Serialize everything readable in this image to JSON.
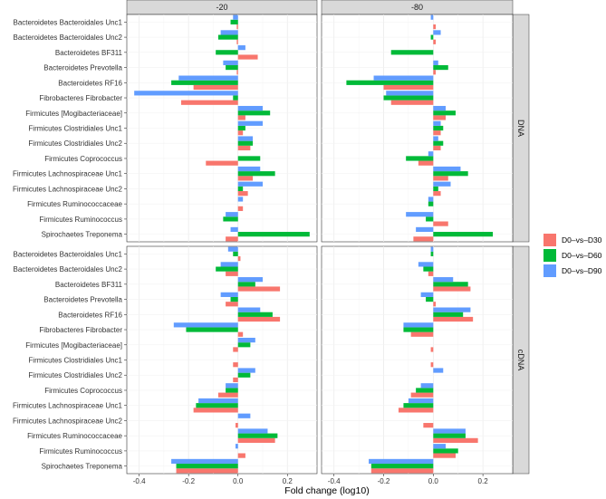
{
  "chart_data": {
    "type": "bar",
    "orientation": "horizontal",
    "xlabel": "Fold change (log10)",
    "ylabel": "",
    "xlim": [
      -0.45,
      0.32
    ],
    "x_ticks": [
      -0.4,
      -0.2,
      0.0,
      0.2
    ],
    "x_tick_labels": [
      "-0.4",
      "-0.2",
      "0.0",
      "0.2"
    ],
    "facet_columns": [
      "-20",
      "-80"
    ],
    "facet_rows": [
      "DNA",
      "cDNA"
    ],
    "categories": [
      "Bacteroidetes Bacteroidales Unc1",
      "Bacteroidetes Bacteroidales Unc2",
      "Bacteroidetes BF311",
      "Bacteroidetes Prevotella",
      "Bacteroidetes RF16",
      "Fibrobacteres Fibrobacter",
      "Firmicutes [Mogibacteriaceae]",
      "Firmicutes Clostridiales Unc1",
      "Firmicutes Clostridiales Unc2",
      "Firmicutes Coprococcus",
      "Firmicutes Lachnospiraceae Unc1",
      "Firmicutes Lachnospiraceae Unc2",
      "Firmicutes Ruminococcaceae",
      "Firmicutes Ruminococcus",
      "Spirochaetes Treponema"
    ],
    "legend": {
      "position": "right",
      "entries": [
        {
          "name": "D0–vs–D30",
          "color": "#F8766D"
        },
        {
          "name": "D0–vs–D60",
          "color": "#00BA38"
        },
        {
          "name": "D0–vs–D90",
          "color": "#619CFF"
        }
      ]
    },
    "panels": [
      {
        "row": "DNA",
        "col": "-20",
        "series": [
          {
            "name": "D0–vs–D30",
            "values": [
              -0.005,
              -0.005,
              0.08,
              -0.005,
              -0.18,
              -0.23,
              0.03,
              0.02,
              0.05,
              -0.13,
              0.06,
              0.04,
              0.02,
              0.0,
              -0.05
            ]
          },
          {
            "name": "D0–vs–D60",
            "values": [
              -0.03,
              -0.08,
              -0.09,
              -0.05,
              -0.27,
              -0.02,
              0.13,
              0.03,
              0.06,
              0.09,
              0.15,
              0.02,
              0.0,
              -0.06,
              0.29
            ]
          },
          {
            "name": "D0–vs–D90",
            "values": [
              -0.02,
              -0.07,
              0.03,
              -0.06,
              -0.24,
              -0.42,
              0.1,
              0.1,
              0.06,
              0.0,
              0.09,
              0.1,
              0.02,
              -0.05,
              -0.03
            ]
          }
        ]
      },
      {
        "row": "DNA",
        "col": "-80",
        "series": [
          {
            "name": "D0–vs–D30",
            "values": [
              0.01,
              0.01,
              0.0,
              0.01,
              -0.2,
              -0.17,
              0.05,
              0.03,
              0.03,
              -0.06,
              0.06,
              0.03,
              0.0,
              0.06,
              -0.08
            ]
          },
          {
            "name": "D0–vs–D60",
            "values": [
              0.0,
              -0.01,
              -0.17,
              0.06,
              -0.35,
              -0.2,
              0.09,
              0.04,
              0.04,
              -0.11,
              0.14,
              0.02,
              -0.02,
              -0.03,
              0.24
            ]
          },
          {
            "name": "D0–vs–D90",
            "values": [
              -0.01,
              0.03,
              0.0,
              0.02,
              -0.24,
              -0.19,
              0.05,
              0.03,
              0.02,
              -0.02,
              0.11,
              0.07,
              -0.02,
              -0.11,
              -0.07
            ]
          }
        ]
      },
      {
        "row": "cDNA",
        "col": "-20",
        "series": [
          {
            "name": "D0–vs–D30",
            "values": [
              0.01,
              -0.05,
              0.17,
              -0.05,
              0.17,
              0.02,
              -0.02,
              -0.02,
              -0.02,
              -0.08,
              -0.18,
              -0.01,
              0.15,
              0.03,
              -0.25
            ]
          },
          {
            "name": "D0–vs–D60",
            "values": [
              -0.02,
              -0.09,
              0.07,
              -0.03,
              0.14,
              -0.21,
              0.05,
              0.0,
              0.05,
              -0.05,
              -0.17,
              0.0,
              0.16,
              0.0,
              -0.25
            ]
          },
          {
            "name": "D0–vs–D90",
            "values": [
              -0.04,
              -0.07,
              0.1,
              -0.07,
              0.09,
              -0.26,
              0.07,
              0.0,
              0.07,
              -0.05,
              -0.16,
              0.05,
              0.12,
              -0.01,
              -0.27
            ]
          }
        ]
      },
      {
        "row": "cDNA",
        "col": "-80",
        "series": [
          {
            "name": "D0–vs–D30",
            "values": [
              0.0,
              -0.02,
              0.15,
              0.01,
              0.16,
              -0.09,
              -0.01,
              -0.01,
              0.0,
              -0.09,
              -0.14,
              -0.04,
              0.18,
              0.09,
              -0.25
            ]
          },
          {
            "name": "D0–vs–D60",
            "values": [
              -0.01,
              -0.04,
              0.14,
              -0.03,
              0.12,
              -0.12,
              0.0,
              0.0,
              0.0,
              -0.07,
              -0.12,
              0.0,
              0.13,
              0.1,
              -0.25
            ]
          },
          {
            "name": "D0–vs–D90",
            "values": [
              -0.01,
              -0.06,
              0.08,
              -0.05,
              0.15,
              -0.12,
              0.0,
              0.0,
              0.04,
              -0.05,
              -0.1,
              0.0,
              0.13,
              0.05,
              -0.26
            ]
          }
        ]
      }
    ]
  }
}
